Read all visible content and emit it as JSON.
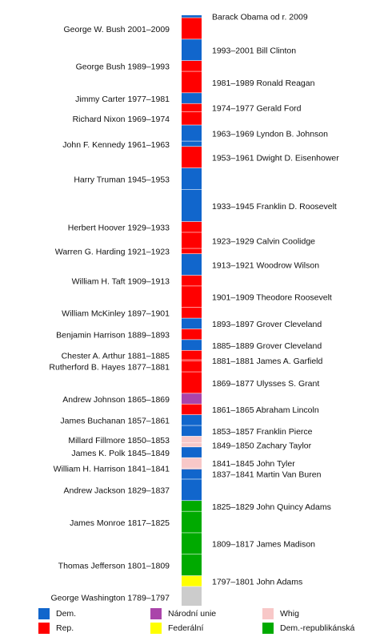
{
  "colors": {
    "dem": "#1166cc",
    "rep": "#ff0000",
    "narodni_unie": "#aa44aa",
    "whig": "#f8c8c8",
    "federalni": "#ffff00",
    "dem_rep": "#00aa00",
    "none": "#cccccc"
  },
  "chart_data": {
    "type": "bar",
    "orientation": "vertical-stacked-timeline",
    "x_range": [
      1789,
      2013
    ],
    "presidents": [
      {
        "name": "George Washington",
        "years": "1789–1797",
        "label": "George Washington 1789–1797",
        "start": 1789,
        "end": 1797,
        "party": "none",
        "side": "left"
      },
      {
        "name": "John Adams",
        "years": "1797–1801",
        "label": "1797–1801 John Adams",
        "start": 1797,
        "end": 1801,
        "party": "federalni",
        "side": "right"
      },
      {
        "name": "Thomas Jefferson",
        "years": "1801–1809",
        "label": "Thomas Jefferson 1801–1809",
        "start": 1801,
        "end": 1809,
        "party": "dem_rep",
        "side": "left"
      },
      {
        "name": "James Madison",
        "years": "1809–1817",
        "label": "1809–1817 James Madison",
        "start": 1809,
        "end": 1817,
        "party": "dem_rep",
        "side": "right"
      },
      {
        "name": "James Monroe",
        "years": "1817–1825",
        "label": "James Monroe 1817–1825",
        "start": 1817,
        "end": 1825,
        "party": "dem_rep",
        "side": "left"
      },
      {
        "name": "John Quincy Adams",
        "years": "1825–1829",
        "label": "1825–1829 John Quincy Adams",
        "start": 1825,
        "end": 1829,
        "party": "dem_rep",
        "side": "right"
      },
      {
        "name": "Andrew Jackson",
        "years": "1829–1837",
        "label": "Andrew Jackson 1829–1837",
        "start": 1829,
        "end": 1837,
        "party": "dem",
        "side": "left"
      },
      {
        "name": "Martin Van Buren",
        "years": "1837–1841",
        "label": "1837–1841 Martin Van Buren",
        "start": 1837,
        "end": 1841,
        "party": "dem",
        "side": "right"
      },
      {
        "name": "William H. Harrison",
        "years": "1841–1841",
        "label": "William H. Harrison 1841–1841",
        "start": 1841,
        "end": 1841.1,
        "party": "whig",
        "side": "left"
      },
      {
        "name": "John Tyler",
        "years": "1841–1845",
        "label": "1841–1845 John Tyler",
        "start": 1841.1,
        "end": 1845,
        "party": "whig",
        "side": "right"
      },
      {
        "name": "James K. Polk",
        "years": "1845–1849",
        "label": "James K. Polk 1845–1849",
        "start": 1845,
        "end": 1849,
        "party": "dem",
        "side": "left"
      },
      {
        "name": "Zachary Taylor",
        "years": "1849–1850",
        "label": "1849–1850 Zachary Taylor",
        "start": 1849,
        "end": 1850.5,
        "party": "whig",
        "side": "right"
      },
      {
        "name": "Millard Fillmore",
        "years": "1850–1853",
        "label": "Millard Fillmore 1850–1853",
        "start": 1850.5,
        "end": 1853,
        "party": "whig",
        "side": "left"
      },
      {
        "name": "Franklin Pierce",
        "years": "1853–1857",
        "label": "1853–1857 Franklin Pierce",
        "start": 1853,
        "end": 1857,
        "party": "dem",
        "side": "right"
      },
      {
        "name": "James Buchanan",
        "years": "1857–1861",
        "label": "James Buchanan 1857–1861",
        "start": 1857,
        "end": 1861,
        "party": "dem",
        "side": "left"
      },
      {
        "name": "Abraham Lincoln",
        "years": "1861–1865",
        "label": "1861–1865 Abraham Lincoln",
        "start": 1861,
        "end": 1865,
        "party": "rep",
        "side": "right"
      },
      {
        "name": "Andrew Johnson",
        "years": "1865–1869",
        "label": "Andrew Johnson 1865–1869",
        "start": 1865,
        "end": 1869,
        "party": "narodni_unie",
        "side": "left"
      },
      {
        "name": "Ulysses S. Grant",
        "years": "1869–1877",
        "label": "1869–1877 Ulysses S. Grant",
        "start": 1869,
        "end": 1877,
        "party": "rep",
        "side": "right"
      },
      {
        "name": "Rutherford B. Hayes",
        "years": "1877–1881",
        "label": "Rutherford B. Hayes 1877–1881",
        "start": 1877,
        "end": 1881,
        "party": "rep",
        "side": "left"
      },
      {
        "name": "James A. Garfield",
        "years": "1881–1881",
        "label": "1881–1881 James A. Garfield",
        "start": 1881,
        "end": 1881.5,
        "party": "rep",
        "side": "right"
      },
      {
        "name": "Chester A. Arthur",
        "years": "1881–1885",
        "label": "Chester A. Arthur 1881–1885",
        "start": 1881.5,
        "end": 1885,
        "party": "rep",
        "side": "left"
      },
      {
        "name": "Grover Cleveland",
        "years": "1885–1889",
        "label": "1885–1889 Grover Cleveland",
        "start": 1885,
        "end": 1889,
        "party": "dem",
        "side": "right"
      },
      {
        "name": "Benjamin Harrison",
        "years": "1889–1893",
        "label": "Benjamin Harrison 1889–1893",
        "start": 1889,
        "end": 1893,
        "party": "rep",
        "side": "left"
      },
      {
        "name": "Grover Cleveland",
        "years": "1893–1897",
        "label": "1893–1897 Grover Cleveland",
        "start": 1893,
        "end": 1897,
        "party": "dem",
        "side": "right"
      },
      {
        "name": "William McKinley",
        "years": "1897–1901",
        "label": "William McKinley 1897–1901",
        "start": 1897,
        "end": 1901,
        "party": "rep",
        "side": "left"
      },
      {
        "name": "Theodore Roosevelt",
        "years": "1901–1909",
        "label": "1901–1909 Theodore Roosevelt",
        "start": 1901,
        "end": 1909,
        "party": "rep",
        "side": "right"
      },
      {
        "name": "William H. Taft",
        "years": "1909–1913",
        "label": "William H. Taft 1909–1913",
        "start": 1909,
        "end": 1913,
        "party": "rep",
        "side": "left"
      },
      {
        "name": "Woodrow Wilson",
        "years": "1913–1921",
        "label": "1913–1921 Woodrow Wilson",
        "start": 1913,
        "end": 1921,
        "party": "dem",
        "side": "right"
      },
      {
        "name": "Warren G. Harding",
        "years": "1921–1923",
        "label": "Warren G. Harding 1921–1923",
        "start": 1921,
        "end": 1923,
        "party": "rep",
        "side": "left"
      },
      {
        "name": "Calvin Coolidge",
        "years": "1923–1929",
        "label": "1923–1929 Calvin Coolidge",
        "start": 1923,
        "end": 1929,
        "party": "rep",
        "side": "right"
      },
      {
        "name": "Herbert Hoover",
        "years": "1929–1933",
        "label": "Herbert Hoover 1929–1933",
        "start": 1929,
        "end": 1933,
        "party": "rep",
        "side": "left"
      },
      {
        "name": "Franklin D. Roosevelt",
        "years": "1933–1945",
        "label": "1933–1945 Franklin D. Roosevelt",
        "start": 1933,
        "end": 1945,
        "party": "dem",
        "side": "right"
      },
      {
        "name": "Harry Truman",
        "years": "1945–1953",
        "label": "Harry Truman 1945–1953",
        "start": 1945,
        "end": 1953,
        "party": "dem",
        "side": "left"
      },
      {
        "name": "Dwight D. Eisenhower",
        "years": "1953–1961",
        "label": "1953–1961 Dwight D. Eisenhower",
        "start": 1953,
        "end": 1961,
        "party": "rep",
        "side": "right"
      },
      {
        "name": "John F. Kennedy",
        "years": "1961–1963",
        "label": "John F. Kennedy 1961–1963",
        "start": 1961,
        "end": 1963,
        "party": "dem",
        "side": "left"
      },
      {
        "name": "Lyndon B. Johnson",
        "years": "1963–1969",
        "label": "1963–1969 Lyndon B. Johnson",
        "start": 1963,
        "end": 1969,
        "party": "dem",
        "side": "right"
      },
      {
        "name": "Richard Nixon",
        "years": "1969–1974",
        "label": "Richard Nixon 1969–1974",
        "start": 1969,
        "end": 1974,
        "party": "rep",
        "side": "left"
      },
      {
        "name": "Gerald Ford",
        "years": "1974–1977",
        "label": "1974–1977 Gerald Ford",
        "start": 1974,
        "end": 1977,
        "party": "rep",
        "side": "right"
      },
      {
        "name": "Jimmy Carter",
        "years": "1977–1981",
        "label": "Jimmy Carter 1977–1981",
        "start": 1977,
        "end": 1981,
        "party": "dem",
        "side": "left"
      },
      {
        "name": "Ronald Reagan",
        "years": "1981–1989",
        "label": "1981–1989 Ronald Reagan",
        "start": 1981,
        "end": 1989,
        "party": "rep",
        "side": "right"
      },
      {
        "name": "George Bush",
        "years": "1989–1993",
        "label": "George Bush 1989–1993",
        "start": 1989,
        "end": 1993,
        "party": "rep",
        "side": "left"
      },
      {
        "name": "Bill Clinton",
        "years": "1993–2001",
        "label": "1993–2001 Bill Clinton",
        "start": 1993,
        "end": 2001,
        "party": "dem",
        "side": "right"
      },
      {
        "name": "George W. Bush",
        "years": "2001–2009",
        "label": "George W. Bush 2001–2009",
        "start": 2001,
        "end": 2009,
        "party": "rep",
        "side": "left"
      },
      {
        "name": "Barack Obama",
        "years": "od r. 2009",
        "label": "Barack Obama od r. 2009",
        "start": 2009,
        "end": 2010,
        "party": "dem",
        "side": "right"
      }
    ]
  },
  "legend": [
    {
      "party": "dem",
      "label": "Dem."
    },
    {
      "party": "rep",
      "label": "Rep."
    },
    {
      "party": "narodni_unie",
      "label": "Národní unie"
    },
    {
      "party": "federalni",
      "label": "Federální"
    },
    {
      "party": "whig",
      "label": "Whig"
    },
    {
      "party": "dem_rep",
      "label": "Dem.-republikánská"
    }
  ]
}
